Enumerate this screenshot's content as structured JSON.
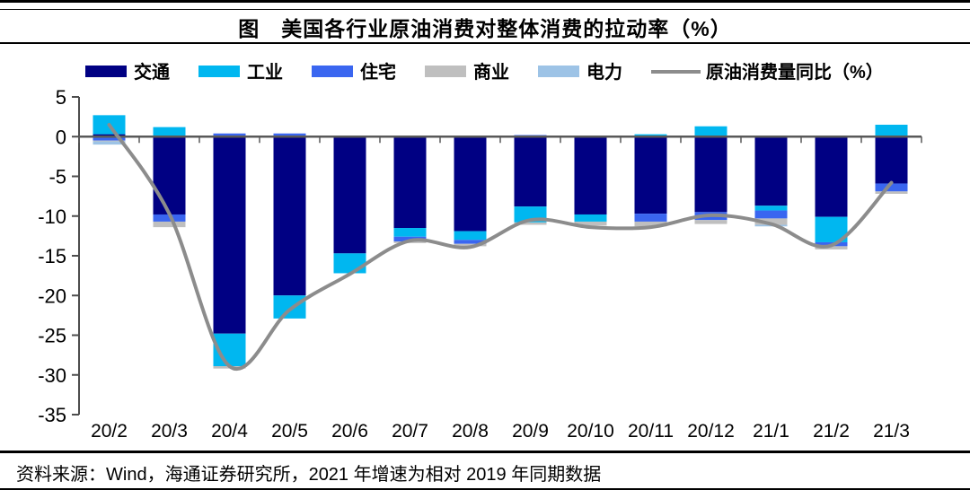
{
  "title": "图　美国各行业原油消费对整体消费的拉动率（%）",
  "footer": "资料来源：Wind，海通证券研究所，2021 年增速为相对 2019 年同期数据",
  "axis_color": "#4d4d4d",
  "chart_data": {
    "type": "bar",
    "subtype": "stacked-bars-with-line",
    "title": "图　美国各行业原油消费对整体消费的拉动率（%）",
    "xlabel": "",
    "ylabel": "",
    "ylim": [
      -35,
      5
    ],
    "yticks": [
      5,
      0,
      -5,
      -10,
      -15,
      -20,
      -25,
      -30,
      -35
    ],
    "grid": false,
    "legend_position": "top",
    "categories": [
      "20/2",
      "20/3",
      "20/4",
      "20/5",
      "20/6",
      "20/7",
      "20/8",
      "20/9",
      "20/10",
      "20/11",
      "20/12",
      "21/1",
      "21/2",
      "21/3"
    ],
    "series": [
      {
        "name": "交通",
        "type": "bar",
        "color": "#000083",
        "values": [
          0.3,
          -9.8,
          -24.8,
          -20.0,
          -14.7,
          -11.5,
          -11.9,
          -8.8,
          -9.8,
          -9.7,
          -9.5,
          -8.7,
          -10.1,
          -5.9
        ]
      },
      {
        "name": "工业",
        "type": "bar",
        "color": "#00b7f0",
        "values": [
          2.4,
          1.2,
          -4.1,
          -2.9,
          -2.5,
          -1.1,
          -1.1,
          -2.0,
          -0.9,
          0.3,
          1.3,
          -0.6,
          -3.2,
          1.5
        ]
      },
      {
        "name": "住宅",
        "type": "bar",
        "color": "#3a66f0",
        "values": [
          -0.5,
          -0.9,
          0.4,
          0.4,
          0.0,
          -0.6,
          -0.5,
          0.2,
          0.0,
          -1.0,
          -1.0,
          -1.0,
          -0.5,
          -1.0
        ]
      },
      {
        "name": "商业",
        "type": "bar",
        "color": "#bfbfbf",
        "values": [
          -0.1,
          -0.7,
          -0.3,
          0.0,
          0.0,
          -0.2,
          -0.3,
          -0.3,
          -0.5,
          -0.6,
          -0.5,
          -0.8,
          -0.4,
          -0.3
        ]
      },
      {
        "name": "电力",
        "type": "bar",
        "color": "#9dc3e6",
        "values": [
          -0.4,
          0.0,
          0.0,
          0.0,
          0.0,
          0.0,
          0.0,
          0.0,
          0.0,
          0.0,
          0.0,
          -0.2,
          0.0,
          0.0
        ]
      },
      {
        "name": "原油消费量同比（%）",
        "type": "line",
        "color": "#8c8c8c",
        "values": [
          1.5,
          -9.7,
          -28.9,
          -21.8,
          -17.3,
          -13.1,
          -13.9,
          -10.5,
          -11.4,
          -11.4,
          -9.9,
          -11.0,
          -13.7,
          -5.8
        ]
      }
    ]
  }
}
